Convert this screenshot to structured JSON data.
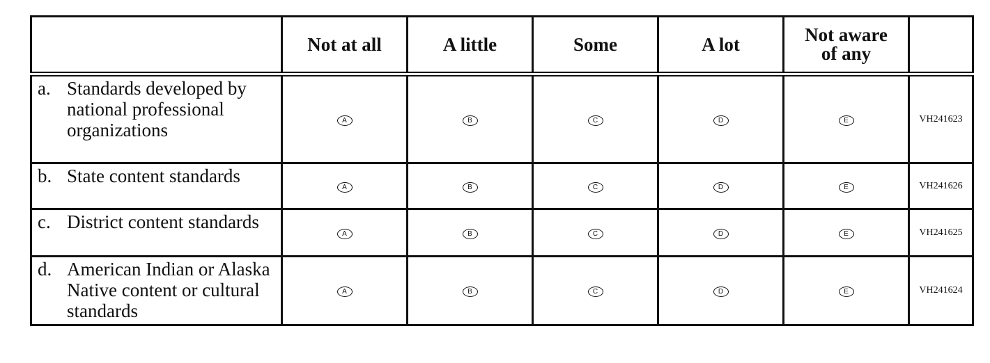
{
  "columns": [
    "Not at all",
    "A little",
    "Some",
    "A lot",
    "Not aware of any"
  ],
  "options": [
    "A",
    "B",
    "C",
    "D",
    "E"
  ],
  "rows": [
    {
      "letter": "a.",
      "text": "Standards developed by national professional organizations",
      "code": "VH241623"
    },
    {
      "letter": "b.",
      "text": "State content standards",
      "code": "VH241626"
    },
    {
      "letter": "c.",
      "text": "District content standards",
      "code": "VH241625"
    },
    {
      "letter": "d.",
      "text": "American Indian or Alaska Native content or cultural standards",
      "code": "VH241624"
    }
  ]
}
